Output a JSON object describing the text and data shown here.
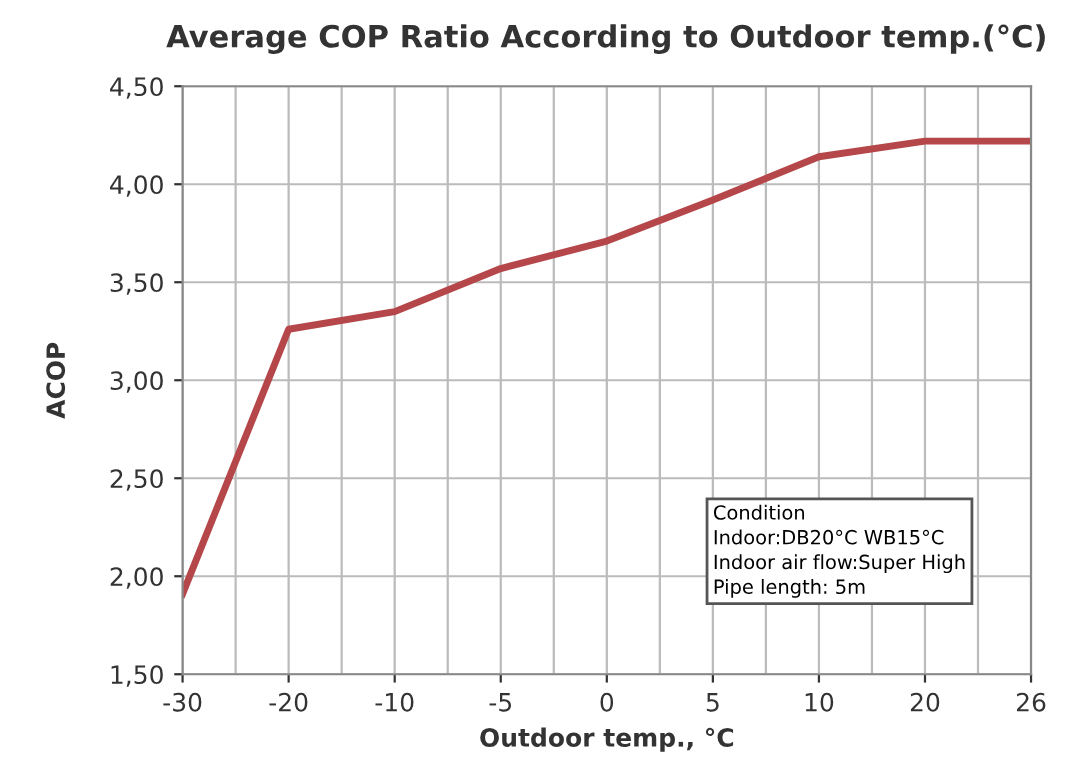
{
  "chart_data": {
    "type": "line",
    "title": "Average COP Ratio According to Outdoor temp.(°C)",
    "xlabel": "Outdoor temp., °C",
    "ylabel": "ACOP",
    "categories": [
      "-30",
      "-20",
      "-10",
      "-5",
      "0",
      "5",
      "10",
      "20",
      "26"
    ],
    "series": [
      {
        "color": "#b5474a",
        "values": [
          1.91,
          3.26,
          3.35,
          3.57,
          3.71,
          3.92,
          4.14,
          4.22,
          4.22
        ]
      }
    ],
    "ylim": [
      1.5,
      4.5
    ],
    "yticks": [
      {
        "value": 1.5,
        "label": "1,50"
      },
      {
        "value": 2.0,
        "label": "2,00"
      },
      {
        "value": 2.5,
        "label": "2,50"
      },
      {
        "value": 3.0,
        "label": "3,00"
      },
      {
        "value": 3.5,
        "label": "3,50"
      },
      {
        "value": 4.0,
        "label": "4,00"
      },
      {
        "value": 4.5,
        "label": "4,50"
      }
    ],
    "grid": true,
    "marker": "none",
    "line_style": "solid",
    "annotations": [
      "Condition\nIndoor:DB20°C WB15°C\nIndoor air flow:Super High\nPipe length: 5m"
    ]
  }
}
